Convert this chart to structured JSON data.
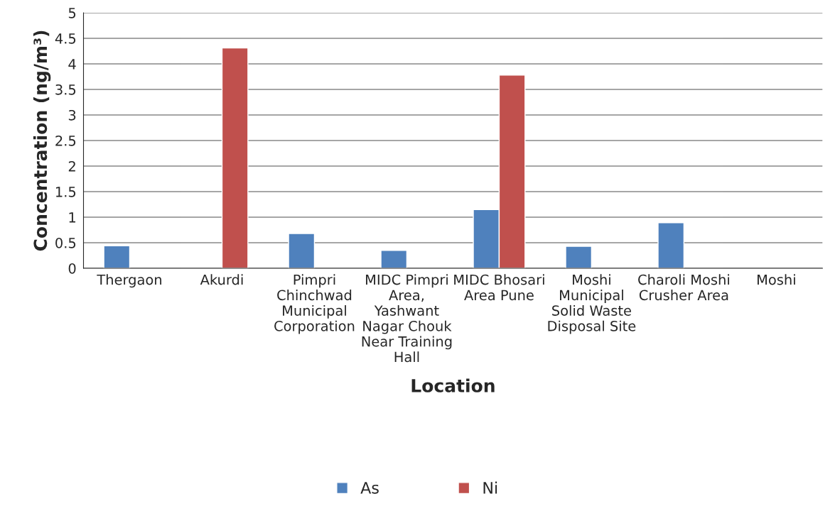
{
  "chart_data": {
    "type": "bar",
    "xlabel": "Location",
    "ylabel": "Concentration (ng/m³)",
    "categories": [
      "Thergaon",
      "Akurdi",
      "Pimpri Chinchwad Municipal Corporation",
      "MIDC Pimpri Area, Yashwant Nagar Chouk Near Training Hall",
      "MIDC Bhosari Area Pune",
      "Moshi Municipal Solid Waste Disposal Site",
      "Charoli Moshi Crusher Area",
      "Moshi"
    ],
    "series": [
      {
        "name": "As",
        "color": "#4f81bd",
        "values": [
          0.44,
          null,
          0.68,
          0.35,
          1.15,
          0.43,
          0.89,
          null
        ]
      },
      {
        "name": "Ni",
        "color": "#c0504d",
        "values": [
          null,
          4.31,
          null,
          null,
          3.78,
          null,
          null,
          null
        ]
      }
    ],
    "ylim": [
      0,
      5
    ],
    "yticks": [
      0,
      0.5,
      1,
      1.5,
      2,
      2.5,
      3,
      3.5,
      4,
      4.5,
      5
    ],
    "grid": "y",
    "legend": "bottom"
  }
}
